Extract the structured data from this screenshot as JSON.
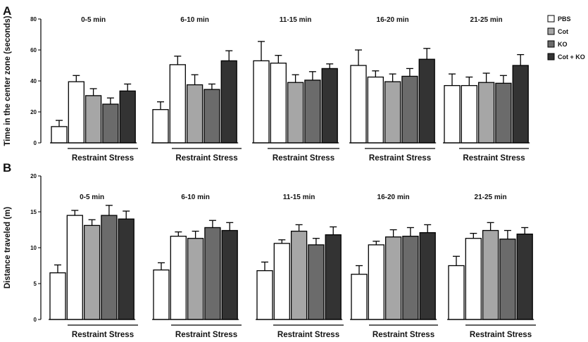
{
  "chart_data": [
    {
      "type": "bar",
      "panel": "A",
      "ylabel": "Time in the center zone (seconds)",
      "ylim": [
        0,
        80
      ],
      "yticks": [
        0,
        20,
        40,
        60,
        80
      ],
      "stress_label": "Restraint Stress",
      "groups": [
        {
          "window": "0-5 min",
          "bars": [
            {
              "name": "PBS unstressed",
              "value": 10.5,
              "err": 4
            },
            {
              "name": "PBS",
              "value": 39.5,
              "err": 4
            },
            {
              "name": "Cot",
              "value": 30.5,
              "err": 4.5
            },
            {
              "name": "KO",
              "value": 25,
              "err": 4
            },
            {
              "name": "Cot + KO",
              "value": 33.5,
              "err": 4.5
            }
          ]
        },
        {
          "window": "6-10 min",
          "bars": [
            {
              "name": "PBS unstressed",
              "value": 21.5,
              "err": 5
            },
            {
              "name": "PBS",
              "value": 50.5,
              "err": 5.5
            },
            {
              "name": "Cot",
              "value": 37.5,
              "err": 6.5
            },
            {
              "name": "KO",
              "value": 34.5,
              "err": 3.5
            },
            {
              "name": "Cot + KO",
              "value": 53,
              "err": 6.5
            }
          ]
        },
        {
          "window": "11-15 min",
          "bars": [
            {
              "name": "PBS unstressed",
              "value": 53,
              "err": 12.5
            },
            {
              "name": "PBS",
              "value": 51.5,
              "err": 5
            },
            {
              "name": "Cot",
              "value": 39,
              "err": 5
            },
            {
              "name": "KO",
              "value": 40.5,
              "err": 5.5
            },
            {
              "name": "Cot + KO",
              "value": 48,
              "err": 3
            }
          ]
        },
        {
          "window": "16-20 min",
          "bars": [
            {
              "name": "PBS unstressed",
              "value": 50,
              "err": 10
            },
            {
              "name": "PBS",
              "value": 42.5,
              "err": 4
            },
            {
              "name": "Cot",
              "value": 39.5,
              "err": 5
            },
            {
              "name": "KO",
              "value": 43,
              "err": 5
            },
            {
              "name": "Cot + KO",
              "value": 54,
              "err": 7
            }
          ]
        },
        {
          "window": "21-25 min",
          "bars": [
            {
              "name": "PBS unstressed",
              "value": 37,
              "err": 7.5
            },
            {
              "name": "PBS",
              "value": 37,
              "err": 5.5
            },
            {
              "name": "Cot",
              "value": 39,
              "err": 6
            },
            {
              "name": "KO",
              "value": 38.5,
              "err": 5
            },
            {
              "name": "Cot + KO",
              "value": 50,
              "err": 7
            }
          ]
        }
      ]
    },
    {
      "type": "bar",
      "panel": "B",
      "ylabel": "Distance traveled (m)",
      "ylim": [
        0,
        20
      ],
      "yticks": [
        0,
        5,
        10,
        15,
        20
      ],
      "stress_label": "Restraint Stress",
      "groups": [
        {
          "window": "0-5 min",
          "bars": [
            {
              "name": "PBS unstressed",
              "value": 6.5,
              "err": 1.1
            },
            {
              "name": "PBS",
              "value": 14.5,
              "err": 0.7
            },
            {
              "name": "Cot",
              "value": 13.1,
              "err": 0.8
            },
            {
              "name": "KO",
              "value": 14.5,
              "err": 1.4
            },
            {
              "name": "Cot + KO",
              "value": 14,
              "err": 1.1
            }
          ]
        },
        {
          "window": "6-10 min",
          "bars": [
            {
              "name": "PBS unstressed",
              "value": 6.9,
              "err": 1
            },
            {
              "name": "PBS",
              "value": 11.6,
              "err": 0.6
            },
            {
              "name": "Cot",
              "value": 11.3,
              "err": 1
            },
            {
              "name": "KO",
              "value": 12.8,
              "err": 1
            },
            {
              "name": "Cot + KO",
              "value": 12.4,
              "err": 1.1
            }
          ]
        },
        {
          "window": "11-15 min",
          "bars": [
            {
              "name": "PBS unstressed",
              "value": 6.8,
              "err": 1.2
            },
            {
              "name": "PBS",
              "value": 10.6,
              "err": 0.5
            },
            {
              "name": "Cot",
              "value": 12.3,
              "err": 0.9
            },
            {
              "name": "KO",
              "value": 10.4,
              "err": 0.9
            },
            {
              "name": "Cot + KO",
              "value": 11.8,
              "err": 1.1
            }
          ]
        },
        {
          "window": "16-20 min",
          "bars": [
            {
              "name": "PBS unstressed",
              "value": 6.3,
              "err": 1.2
            },
            {
              "name": "PBS",
              "value": 10.4,
              "err": 0.5
            },
            {
              "name": "Cot",
              "value": 11.5,
              "err": 1
            },
            {
              "name": "KO",
              "value": 11.6,
              "err": 1.2
            },
            {
              "name": "Cot + KO",
              "value": 12.1,
              "err": 1.1
            }
          ]
        },
        {
          "window": "21-25 min",
          "bars": [
            {
              "name": "PBS unstressed",
              "value": 7.5,
              "err": 1.3
            },
            {
              "name": "PBS",
              "value": 11.3,
              "err": 0.7
            },
            {
              "name": "Cot",
              "value": 12.4,
              "err": 1.1
            },
            {
              "name": "KO",
              "value": 11.2,
              "err": 1.2
            },
            {
              "name": "Cot + KO",
              "value": 11.9,
              "err": 0.9
            }
          ]
        }
      ]
    }
  ],
  "legend": [
    {
      "label": "PBS",
      "color": "#ffffff"
    },
    {
      "label": "Cot",
      "color": "#a6a6a6"
    },
    {
      "label": "KO",
      "color": "#6b6b6b"
    },
    {
      "label": "Cot + KO",
      "color": "#333333"
    }
  ],
  "bar_colors": [
    "#ffffff",
    "#ffffff",
    "#a6a6a6",
    "#6b6b6b",
    "#333333"
  ],
  "stroke_color": "#000000"
}
